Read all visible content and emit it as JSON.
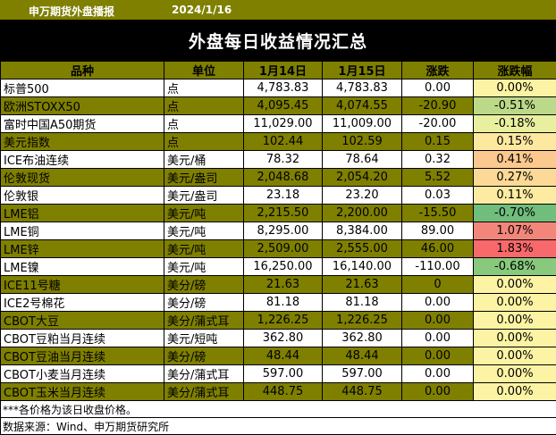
{
  "header": {
    "brand": "申万期货外盘播报",
    "date": "2024/1/16",
    "title": "外盘每日收益情况汇总"
  },
  "columns": [
    "品种",
    "单位",
    "1月14日",
    "1月15日",
    "涨跌",
    "涨跌幅"
  ],
  "rows": [
    {
      "name": "标普500",
      "unit": "点",
      "d1": "4,783.83",
      "d2": "4,783.83",
      "chg": "0.00",
      "pct": "0.00%",
      "band": "white",
      "pct_bg": "#fcf3a4"
    },
    {
      "name": "欧洲STOXX50",
      "unit": "点",
      "d1": "4,095.45",
      "d2": "4,074.55",
      "chg": "-20.90",
      "pct": "-0.51%",
      "band": "olive",
      "pct_bg": "#bcd989"
    },
    {
      "name": "富时中国A50期货",
      "unit": "点",
      "d1": "11,029.00",
      "d2": "11,009.00",
      "chg": "-20.00",
      "pct": "-0.18%",
      "band": "white",
      "pct_bg": "#e8ef9e"
    },
    {
      "name": "美元指数",
      "unit": "点",
      "d1": "102.44",
      "d2": "102.59",
      "chg": "0.15",
      "pct": "0.15%",
      "band": "olive",
      "pct_bg": "#fde8a0"
    },
    {
      "name": "ICE布油连续",
      "unit": "美元/桶",
      "d1": "78.32",
      "d2": "78.64",
      "chg": "0.32",
      "pct": "0.41%",
      "band": "white",
      "pct_bg": "#fbc98f"
    },
    {
      "name": "伦敦现货",
      "unit": "美元/盎司",
      "d1": "2,048.68",
      "d2": "2,054.20",
      "chg": "5.52",
      "pct": "0.27%",
      "band": "olive",
      "pct_bg": "#fcd996"
    },
    {
      "name": "伦敦银",
      "unit": "美元/盎司",
      "d1": "23.18",
      "d2": "23.20",
      "chg": "0.03",
      "pct": "0.11%",
      "band": "white",
      "pct_bg": "#fdeba1"
    },
    {
      "name": "LME铝",
      "unit": "美元/吨",
      "d1": "2,215.50",
      "d2": "2,200.00",
      "chg": "-15.50",
      "pct": "-0.70%",
      "band": "olive",
      "pct_bg": "#70bd7c"
    },
    {
      "name": "LME铜",
      "unit": "美元/吨",
      "d1": "8,295.00",
      "d2": "8,384.00",
      "chg": "89.00",
      "pct": "1.07%",
      "band": "white",
      "pct_bg": "#f2867a"
    },
    {
      "name": "LME锌",
      "unit": "美元/吨",
      "d1": "2,509.00",
      "d2": "2,555.00",
      "chg": "46.00",
      "pct": "1.83%",
      "band": "olive",
      "pct_bg": "#f8696b"
    },
    {
      "name": "LME镍",
      "unit": "美元/吨",
      "d1": "16,250.00",
      "d2": "16,140.00",
      "chg": "-110.00",
      "pct": "-0.68%",
      "band": "white",
      "pct_bg": "#88c97d"
    },
    {
      "name": "ICE11号糖",
      "unit": "美分/磅",
      "d1": "21.63",
      "d2": "21.63",
      "chg": "0",
      "pct": "0.00%",
      "band": "olive",
      "pct_bg": "#fcf3a4"
    },
    {
      "name": "ICE2号棉花",
      "unit": "美分/磅",
      "d1": "81.18",
      "d2": "81.18",
      "chg": "0.00",
      "pct": "0.00%",
      "band": "white",
      "pct_bg": "#fcf3a4"
    },
    {
      "name": "CBOT大豆",
      "unit": "美分/蒲式耳",
      "d1": "1,226.25",
      "d2": "1,226.25",
      "chg": "0.00",
      "pct": "0.00%",
      "band": "olive",
      "pct_bg": "#fcf3a4"
    },
    {
      "name": "CBOT豆粕当月连续",
      "unit": "美元/短吨",
      "d1": "362.80",
      "d2": "362.80",
      "chg": "0.00",
      "pct": "0.00%",
      "band": "white",
      "pct_bg": "#fcf3a4"
    },
    {
      "name": "CBOT豆油当月连续",
      "unit": "美分/磅",
      "d1": "48.44",
      "d2": "48.44",
      "chg": "0.00",
      "pct": "0.00%",
      "band": "olive",
      "pct_bg": "#fcf3a4"
    },
    {
      "name": "CBOT小麦当月连续",
      "unit": "美分/蒲式耳",
      "d1": "597.00",
      "d2": "597.00",
      "chg": "0.00",
      "pct": "0.00%",
      "band": "white",
      "pct_bg": "#fcf3a4"
    },
    {
      "name": "CBOT玉米当月连续",
      "unit": "美分/蒲式耳",
      "d1": "448.75",
      "d2": "448.75",
      "chg": "0.00",
      "pct": "0.00%",
      "band": "olive",
      "pct_bg": "#fcf3a4"
    }
  ],
  "footnotes": {
    "note": "***各价格为该日收盘价格。",
    "source": "数据来源：Wind、申万期货研究所"
  },
  "colors": {
    "olive": "#7f7f00",
    "title_bg": "#000000"
  }
}
